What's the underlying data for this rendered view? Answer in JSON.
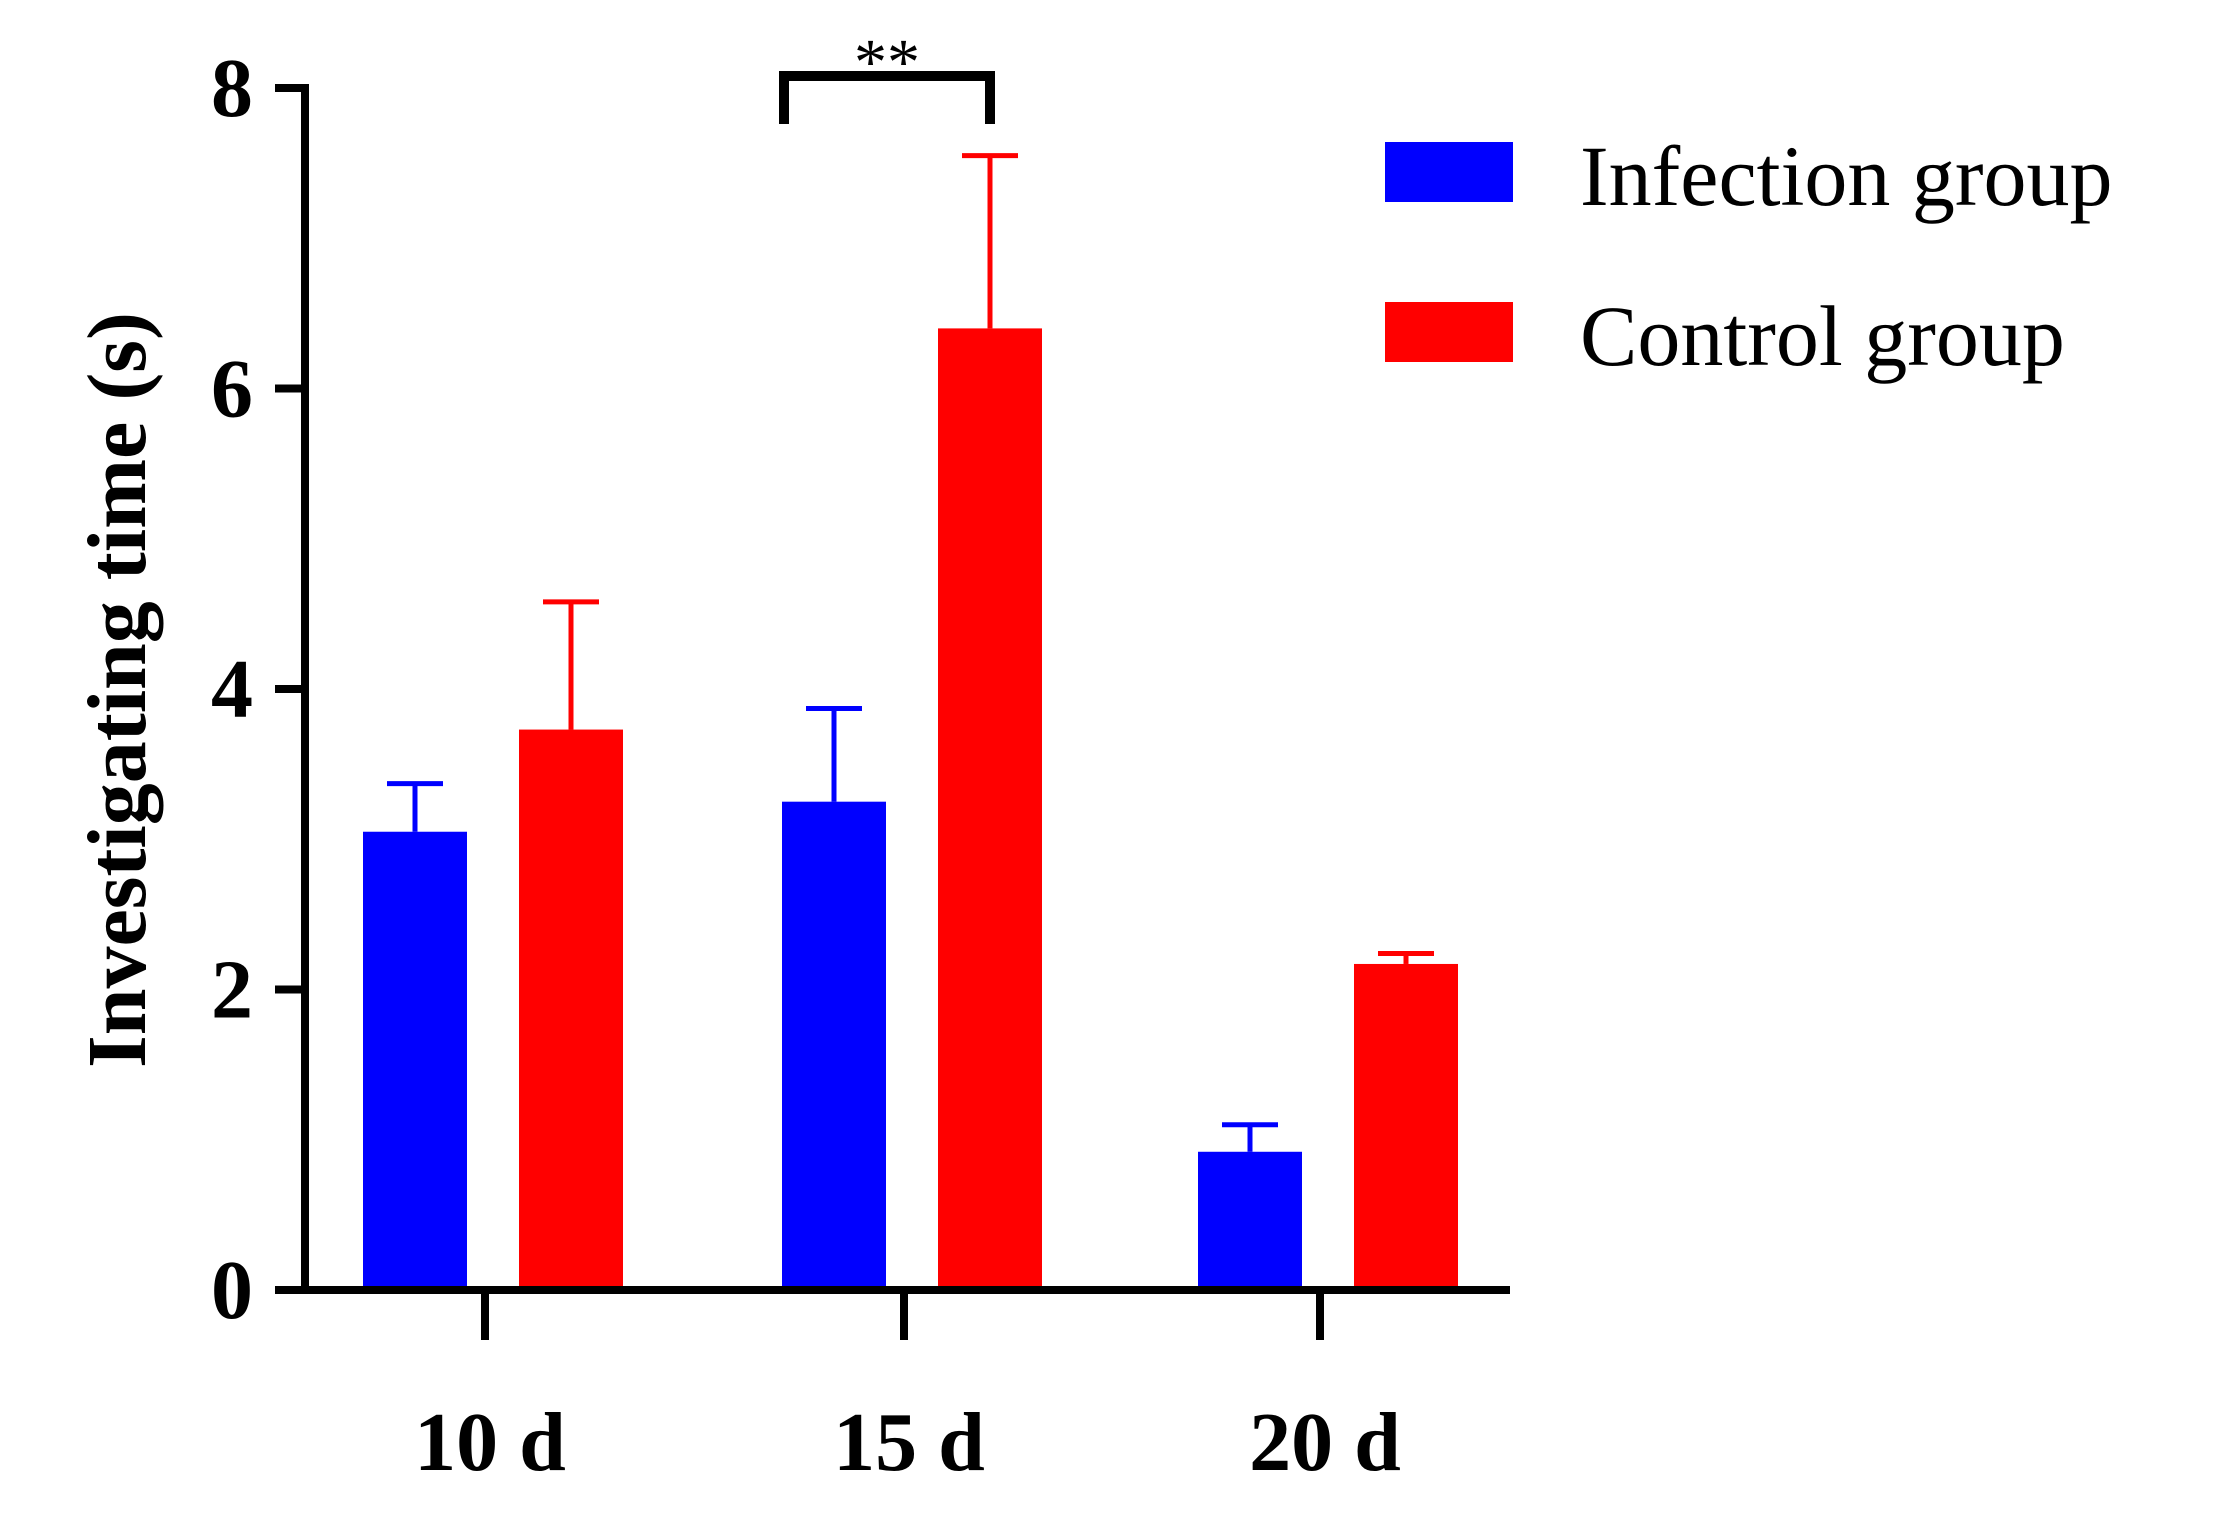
{
  "chart_data": {
    "type": "bar",
    "title": "",
    "xlabel": "",
    "ylabel": "Investigating time (s)",
    "categories": [
      "10 d",
      "15 d",
      "20 d"
    ],
    "ylim": [
      0,
      8
    ],
    "yticks": [
      0,
      2,
      4,
      6,
      8
    ],
    "ytick_labels": [
      "0",
      "2",
      "4",
      "6",
      "8"
    ],
    "series": [
      {
        "name": "Infection group",
        "color": "#0000ff",
        "values": [
          3.05,
          3.25,
          0.92
        ],
        "errors": [
          0.32,
          0.62,
          0.18
        ]
      },
      {
        "name": "Control group",
        "color": "#ff0000",
        "values": [
          3.73,
          6.4,
          2.17
        ],
        "errors": [
          0.85,
          1.15,
          0.07
        ]
      }
    ],
    "legend": {
      "position": "top-right"
    },
    "significance": [
      {
        "category": "15 d",
        "label": "**"
      }
    ]
  }
}
